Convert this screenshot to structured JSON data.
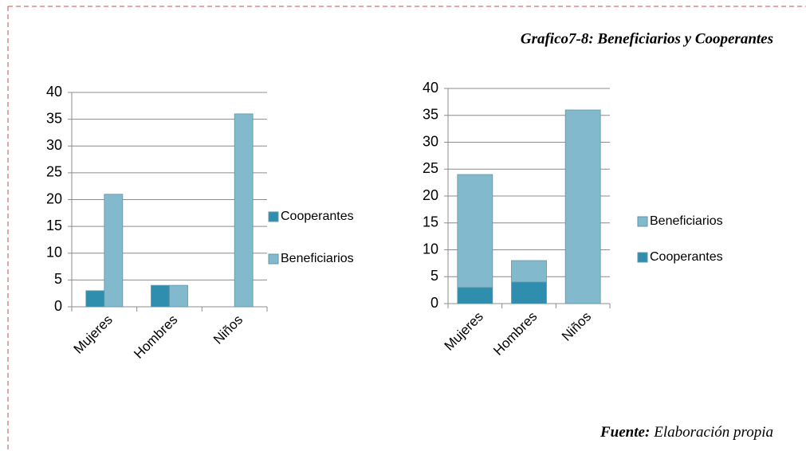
{
  "caption": "Grafico7-8: Beneficiarios y Cooperantes",
  "source": {
    "label": "Fuente:",
    "text": "Elaboración propia"
  },
  "chart_data": [
    {
      "type": "bar",
      "categories": [
        "Mujeres",
        "Hombres",
        "Niños"
      ],
      "series": [
        {
          "name": "Cooperantes",
          "color": "#2f8eae",
          "values": [
            3,
            4,
            0
          ]
        },
        {
          "name": "Beneficiarios",
          "color": "#82b9cc",
          "values": [
            21,
            4,
            36
          ]
        }
      ],
      "ylim": [
        0,
        40
      ],
      "yticks": [
        0,
        5,
        10,
        15,
        20,
        25,
        30,
        35,
        40
      ],
      "grid": true,
      "legend": "right"
    },
    {
      "type": "stacked_bar",
      "categories": [
        "Mujeres",
        "Hombres",
        "Niños"
      ],
      "series": [
        {
          "name": "Cooperantes",
          "color": "#2f8eae",
          "values": [
            3,
            4,
            0
          ]
        },
        {
          "name": "Beneficiarios",
          "color": "#82b9cc",
          "values": [
            21,
            4,
            36
          ]
        }
      ],
      "ylim": [
        0,
        40
      ],
      "yticks": [
        0,
        5,
        10,
        15,
        20,
        25,
        30,
        35,
        40
      ],
      "grid": true,
      "legend": "right"
    }
  ]
}
